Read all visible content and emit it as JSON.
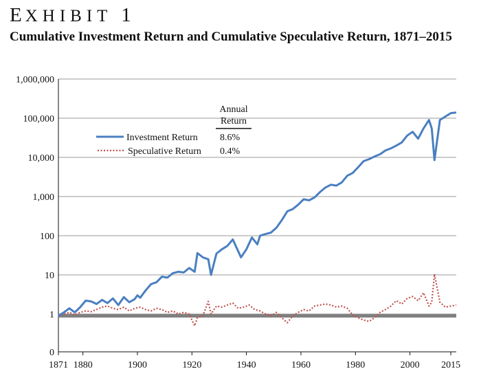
{
  "exhibit": {
    "first": "E",
    "rest": "XHIBIT",
    "number": "1"
  },
  "title": "Cumulative Investment Return and Cumulative Speculative Return, 1871–2015",
  "colors": {
    "investment": "#4a7fc1",
    "speculative": "#c0504d",
    "baseline": "#808080",
    "grid": "#9a9a9a"
  },
  "chart_data": {
    "type": "line",
    "title": "Cumulative Investment Return and Cumulative Speculative Return, 1871–2015",
    "xlabel": "",
    "ylabel": "",
    "y_scale": "log",
    "ylim": [
      0,
      1000000
    ],
    "xlim": [
      1871,
      2017
    ],
    "grid": true,
    "x_ticks": [
      "1871",
      "1880",
      "1900",
      "1920",
      "1940",
      "1960",
      "1980",
      "2000",
      "2015"
    ],
    "y_ticks": [
      "1,000,000",
      "100,000",
      "10,000",
      "1,000",
      "100",
      "10",
      "1",
      "0"
    ],
    "legend": {
      "header_line1": "Annual",
      "header_line2": "Return",
      "placement": "top-left"
    },
    "series": [
      {
        "name": "Investment Return",
        "annual_return": "8.6%",
        "style": "solid",
        "x": [
          1871,
          1873,
          1875,
          1877,
          1879,
          1881,
          1883,
          1885,
          1887,
          1889,
          1891,
          1893,
          1895,
          1897,
          1899,
          1900,
          1901,
          1903,
          1905,
          1907,
          1909,
          1911,
          1913,
          1915,
          1917,
          1919,
          1921,
          1922,
          1924,
          1926,
          1927,
          1929,
          1931,
          1933,
          1935,
          1937,
          1938,
          1940,
          1942,
          1944,
          1945,
          1947,
          1949,
          1951,
          1953,
          1955,
          1957,
          1959,
          1961,
          1963,
          1965,
          1967,
          1969,
          1971,
          1973,
          1975,
          1977,
          1979,
          1981,
          1983,
          1985,
          1987,
          1989,
          1991,
          1993,
          1995,
          1997,
          1999,
          2001,
          2003,
          2005,
          2007,
          2008,
          2009,
          2011,
          2013,
          2015,
          2017
        ],
        "y": [
          0.9,
          1.1,
          1.4,
          1.1,
          1.5,
          2.2,
          2.1,
          1.8,
          2.3,
          1.9,
          2.5,
          1.7,
          2.7,
          2.0,
          2.4,
          3.0,
          2.6,
          4.0,
          5.8,
          6.5,
          9.0,
          8.5,
          11.0,
          12.0,
          11.5,
          15.0,
          12.0,
          36.0,
          28.0,
          25.0,
          10.0,
          35.0,
          45.0,
          55.0,
          80.0,
          40.0,
          28.0,
          45.0,
          90.0,
          60.0,
          100.0,
          110.0,
          120.0,
          160.0,
          250.0,
          420.0,
          480.0,
          620.0,
          850.0,
          800.0,
          950.0,
          1300.0,
          1700.0,
          2000.0,
          1900.0,
          2300.0,
          3400.0,
          4000.0,
          5600.0,
          8000.0,
          9000.0,
          10500.0,
          12000.0,
          15000.0,
          17000.0,
          20000.0,
          24000.0,
          36000.0,
          45000.0,
          30000.0,
          55000.0,
          90000.0,
          55000.0,
          8500.0,
          90000.0,
          110000.0,
          135000.0,
          140000.0
        ]
      },
      {
        "name": "Speculative Return",
        "annual_return": "0.4%",
        "style": "dotted",
        "x": [
          1871,
          1873,
          1875,
          1877,
          1879,
          1881,
          1883,
          1885,
          1887,
          1889,
          1891,
          1893,
          1895,
          1897,
          1899,
          1901,
          1903,
          1905,
          1907,
          1909,
          1911,
          1913,
          1915,
          1917,
          1919,
          1920,
          1921,
          1922,
          1924,
          1926,
          1927,
          1929,
          1931,
          1933,
          1935,
          1937,
          1939,
          1941,
          1943,
          1945,
          1947,
          1949,
          1951,
          1953,
          1955,
          1957,
          1959,
          1961,
          1963,
          1965,
          1967,
          1969,
          1971,
          1973,
          1975,
          1977,
          1979,
          1981,
          1983,
          1985,
          1987,
          1989,
          1991,
          1993,
          1995,
          1997,
          1999,
          2001,
          2003,
          2005,
          2007,
          2008,
          2009,
          2011,
          2013,
          2015,
          2017
        ],
        "y": [
          0.9,
          1.0,
          1.1,
          0.95,
          1.1,
          1.2,
          1.15,
          1.3,
          1.5,
          1.6,
          1.4,
          1.3,
          1.5,
          1.2,
          1.4,
          1.5,
          1.3,
          1.2,
          1.4,
          1.3,
          1.1,
          1.2,
          1.0,
          1.1,
          1.0,
          0.7,
          0.5,
          0.8,
          0.9,
          2.1,
          1.0,
          1.6,
          1.5,
          1.7,
          1.9,
          1.4,
          1.5,
          1.7,
          1.3,
          1.2,
          1.0,
          0.9,
          1.1,
          0.8,
          0.6,
          0.9,
          1.1,
          1.3,
          1.2,
          1.6,
          1.7,
          1.8,
          1.7,
          1.5,
          1.6,
          1.4,
          0.95,
          0.8,
          0.7,
          0.65,
          0.8,
          1.1,
          1.3,
          1.6,
          2.2,
          1.8,
          2.5,
          2.8,
          2.2,
          3.5,
          1.6,
          2.0,
          10.5,
          2.0,
          1.5,
          1.6,
          1.7
        ]
      },
      {
        "name": "",
        "style": "baseline",
        "x": [
          1871,
          2017
        ],
        "y": [
          0.9,
          0.9
        ]
      }
    ]
  }
}
